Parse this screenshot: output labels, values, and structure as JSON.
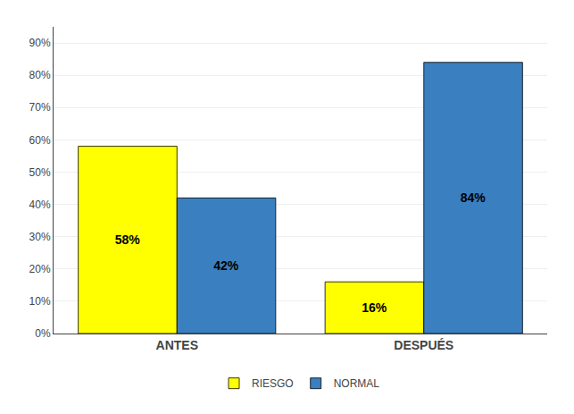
{
  "chart_data": {
    "type": "bar",
    "categories": [
      "ANTES",
      "DESPUÉS"
    ],
    "series": [
      {
        "name": "RIESGO",
        "color": "#FFFF00",
        "values": [
          58,
          16
        ],
        "value_labels": [
          "58%",
          "16%"
        ]
      },
      {
        "name": "NORMAL",
        "color": "#3A7FBF",
        "values": [
          42,
          84
        ],
        "value_labels": [
          "42%",
          "84%"
        ]
      }
    ],
    "ylim": [
      0,
      95
    ],
    "yticks": [
      {
        "value": 0,
        "label": "0%"
      },
      {
        "value": 10,
        "label": "10%"
      },
      {
        "value": 20,
        "label": "20%"
      },
      {
        "value": 30,
        "label": "30%"
      },
      {
        "value": 40,
        "label": "40%"
      },
      {
        "value": 50,
        "label": "50%"
      },
      {
        "value": 60,
        "label": "60%"
      },
      {
        "value": 70,
        "label": "70%"
      },
      {
        "value": 80,
        "label": "80%"
      },
      {
        "value": 90,
        "label": "90%"
      }
    ],
    "grid": true,
    "legend": "bottom",
    "data_labels": true
  }
}
